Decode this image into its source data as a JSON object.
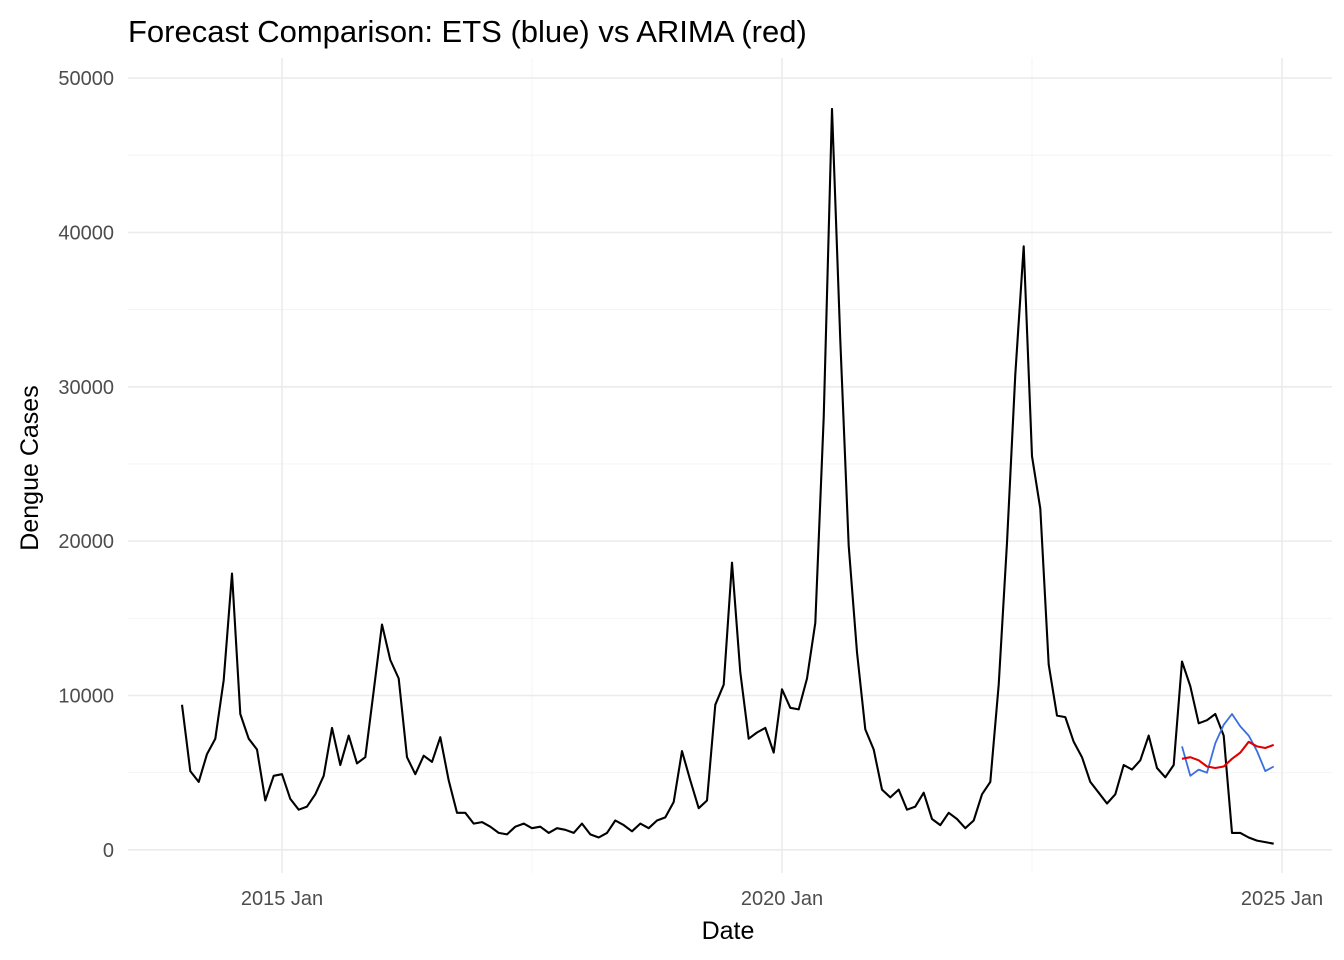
{
  "chart_data": {
    "type": "line",
    "title": "Forecast Comparison: ETS (blue) vs ARIMA (red)",
    "xlabel": "Date",
    "ylabel": "Dengue Cases",
    "x_tick_labels": [
      "2015 Jan",
      "2020 Jan",
      "2025 Jan"
    ],
    "y_tick_labels": [
      "0",
      "10000",
      "20000",
      "30000",
      "40000",
      "50000"
    ],
    "ylim": [
      -1500,
      51300
    ],
    "grid": true,
    "legend": "none",
    "series": [
      {
        "color": "#000000",
        "x": [
          "2014-01",
          "2014-02",
          "2014-03",
          "2014-04",
          "2014-05",
          "2014-06",
          "2014-07",
          "2014-08",
          "2014-09",
          "2014-10",
          "2014-11",
          "2014-12",
          "2015-01",
          "2015-02",
          "2015-03",
          "2015-04",
          "2015-05",
          "2015-06",
          "2015-07",
          "2015-08",
          "2015-09",
          "2015-10",
          "2015-11",
          "2015-12",
          "2016-01",
          "2016-02",
          "2016-03",
          "2016-04",
          "2016-05",
          "2016-06",
          "2016-07",
          "2016-08",
          "2016-09",
          "2016-10",
          "2016-11",
          "2016-12",
          "2017-01",
          "2017-02",
          "2017-03",
          "2017-04",
          "2017-05",
          "2017-06",
          "2017-07",
          "2017-08",
          "2017-09",
          "2017-10",
          "2017-11",
          "2017-12",
          "2018-01",
          "2018-02",
          "2018-03",
          "2018-04",
          "2018-05",
          "2018-06",
          "2018-07",
          "2018-08",
          "2018-09",
          "2018-10",
          "2018-11",
          "2018-12",
          "2019-01",
          "2019-02",
          "2019-03",
          "2019-04",
          "2019-05",
          "2019-06",
          "2019-07",
          "2019-08",
          "2019-09",
          "2019-10",
          "2019-11",
          "2019-12",
          "2020-01",
          "2020-02",
          "2020-03",
          "2020-04",
          "2020-05",
          "2020-06",
          "2020-07",
          "2020-08",
          "2020-09",
          "2020-10",
          "2020-11",
          "2020-12",
          "2021-01",
          "2021-02",
          "2021-03",
          "2021-04",
          "2021-05",
          "2021-06",
          "2021-07",
          "2021-08",
          "2021-09",
          "2021-10",
          "2021-11",
          "2021-12",
          "2022-01",
          "2022-02",
          "2022-03",
          "2022-04",
          "2022-05",
          "2022-06",
          "2022-07",
          "2022-08",
          "2022-09",
          "2022-10",
          "2022-11",
          "2022-12",
          "2023-01",
          "2023-02",
          "2023-03",
          "2023-04",
          "2023-05",
          "2023-06",
          "2023-07",
          "2023-08",
          "2023-09",
          "2023-10",
          "2023-11",
          "2023-12",
          "2024-01",
          "2024-02",
          "2024-03",
          "2024-04",
          "2024-05",
          "2024-06",
          "2024-07",
          "2024-08",
          "2024-09",
          "2024-10",
          "2024-11",
          "2024-12"
        ],
        "values": [
          9400,
          5100,
          4400,
          6200,
          7200,
          11000,
          17900,
          8800,
          7200,
          6500,
          3200,
          4800,
          4900,
          3300,
          2600,
          2800,
          3600,
          4800,
          7900,
          5500,
          7400,
          5600,
          6000,
          10300,
          14600,
          12300,
          11100,
          6000,
          4900,
          6100,
          5700,
          7300,
          4500,
          2400,
          2400,
          1700,
          1800,
          1500,
          1100,
          1000,
          1500,
          1700,
          1400,
          1500,
          1100,
          1400,
          1300,
          1100,
          1700,
          1000,
          800,
          1100,
          1900,
          1600,
          1200,
          1700,
          1400,
          1900,
          2100,
          3100,
          6400,
          4500,
          2700,
          3200,
          9400,
          10700,
          18600,
          11500,
          7200,
          7600,
          7900,
          6300,
          10400,
          9200,
          9100,
          11100,
          14700,
          28000,
          48000,
          33000,
          19700,
          12800,
          7800,
          6500,
          3900,
          3400,
          3900,
          2600,
          2800,
          3700,
          2000,
          1600,
          2400,
          2000,
          1400,
          1900,
          3600,
          4400,
          10700,
          19900,
          30800,
          39100,
          25500,
          22100,
          12000,
          8700,
          8600,
          7000,
          6000,
          4400,
          3700,
          3000,
          3600,
          5500,
          5200,
          5800,
          7400,
          5300,
          4700,
          5500,
          12200,
          10600,
          8200,
          8400,
          8800,
          7400,
          1100,
          1100,
          800,
          600,
          500,
          400
        ]
      },
      {
        "color": "#3a6fe0",
        "x": [
          "2024-01",
          "2024-02",
          "2024-03",
          "2024-04",
          "2024-05",
          "2024-06",
          "2024-07",
          "2024-08",
          "2024-09",
          "2024-10",
          "2024-11",
          "2024-12"
        ],
        "values": [
          6700,
          4800,
          5200,
          5000,
          6900,
          8100,
          8800,
          8000,
          7400,
          6400,
          5100,
          5400
        ]
      },
      {
        "color": "#e00000",
        "x": [
          "2024-01",
          "2024-02",
          "2024-03",
          "2024-04",
          "2024-05",
          "2024-06",
          "2024-07",
          "2024-08",
          "2024-09",
          "2024-10",
          "2024-11",
          "2024-12"
        ],
        "values": [
          5900,
          6000,
          5800,
          5400,
          5300,
          5400,
          5900,
          6300,
          7000,
          6700,
          6600,
          6800
        ]
      }
    ]
  }
}
